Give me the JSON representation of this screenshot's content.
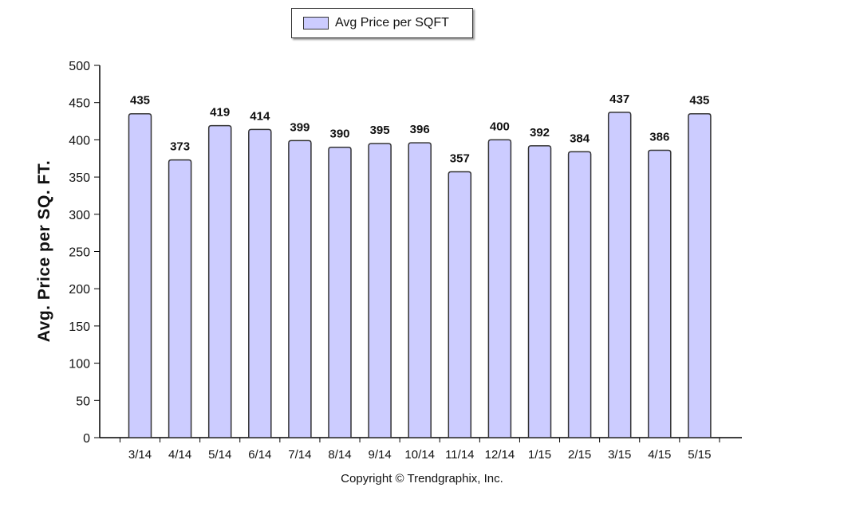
{
  "chart_data": {
    "type": "bar",
    "categories": [
      "3/14",
      "4/14",
      "5/14",
      "6/14",
      "7/14",
      "8/14",
      "9/14",
      "10/14",
      "11/14",
      "12/14",
      "1/15",
      "2/15",
      "3/15",
      "4/15",
      "5/15"
    ],
    "series": [
      {
        "name": "Avg Price per SQFT",
        "values": [
          435,
          373,
          419,
          414,
          399,
          390,
          395,
          396,
          357,
          400,
          392,
          384,
          437,
          386,
          435
        ]
      }
    ],
    "ylabel": "Avg. Price per SQ. FT.",
    "ylim": [
      0,
      500
    ],
    "yticks": [
      0,
      50,
      100,
      150,
      200,
      250,
      300,
      350,
      400,
      450,
      500
    ],
    "legend_position": "top-center",
    "grid": false,
    "bar_color": "#ccccff",
    "bar_edge_color": "#333333"
  },
  "footer": {
    "copyright": "Copyright © Trendgraphix, Inc."
  }
}
